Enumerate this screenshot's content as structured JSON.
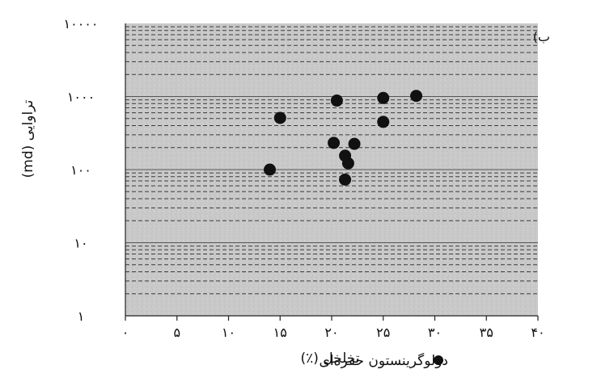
{
  "chart_data": {
    "type": "scatter",
    "title": "",
    "panel_label": "ب)",
    "xlabel": "تخلخل (٪)",
    "ylabel": "تراوایی (md)",
    "xlim": [
      0,
      40
    ],
    "ylim": [
      1,
      10000
    ],
    "y_scale": "log",
    "grid": true,
    "legend_position": "bottom-right",
    "x_ticks": [
      {
        "value": 0,
        "label": "۰"
      },
      {
        "value": 5,
        "label": "۵"
      },
      {
        "value": 10,
        "label": "۱۰"
      },
      {
        "value": 15,
        "label": "۱۵"
      },
      {
        "value": 20,
        "label": "۲۰"
      },
      {
        "value": 25,
        "label": "۲۵"
      },
      {
        "value": 30,
        "label": "۳۰"
      },
      {
        "value": 35,
        "label": "۳۵"
      },
      {
        "value": 40,
        "label": "۴۰"
      }
    ],
    "y_ticks": [
      {
        "value": 1,
        "label": "۱"
      },
      {
        "value": 10,
        "label": "۱۰"
      },
      {
        "value": 100,
        "label": "۱۰۰"
      },
      {
        "value": 1000,
        "label": "۱۰۰۰"
      },
      {
        "value": 10000,
        "label": "۱۰۰۰۰"
      }
    ],
    "series": [
      {
        "name": "دولوگرینستون حفره‌ای",
        "color": "#111111",
        "points": [
          {
            "x": 14.0,
            "y": 100
          },
          {
            "x": 15.0,
            "y": 510
          },
          {
            "x": 20.5,
            "y": 880
          },
          {
            "x": 20.2,
            "y": 232
          },
          {
            "x": 21.3,
            "y": 155
          },
          {
            "x": 21.6,
            "y": 122
          },
          {
            "x": 21.3,
            "y": 73
          },
          {
            "x": 22.2,
            "y": 225
          },
          {
            "x": 25.0,
            "y": 955
          },
          {
            "x": 25.0,
            "y": 450
          },
          {
            "x": 28.2,
            "y": 1020
          }
        ]
      }
    ]
  }
}
